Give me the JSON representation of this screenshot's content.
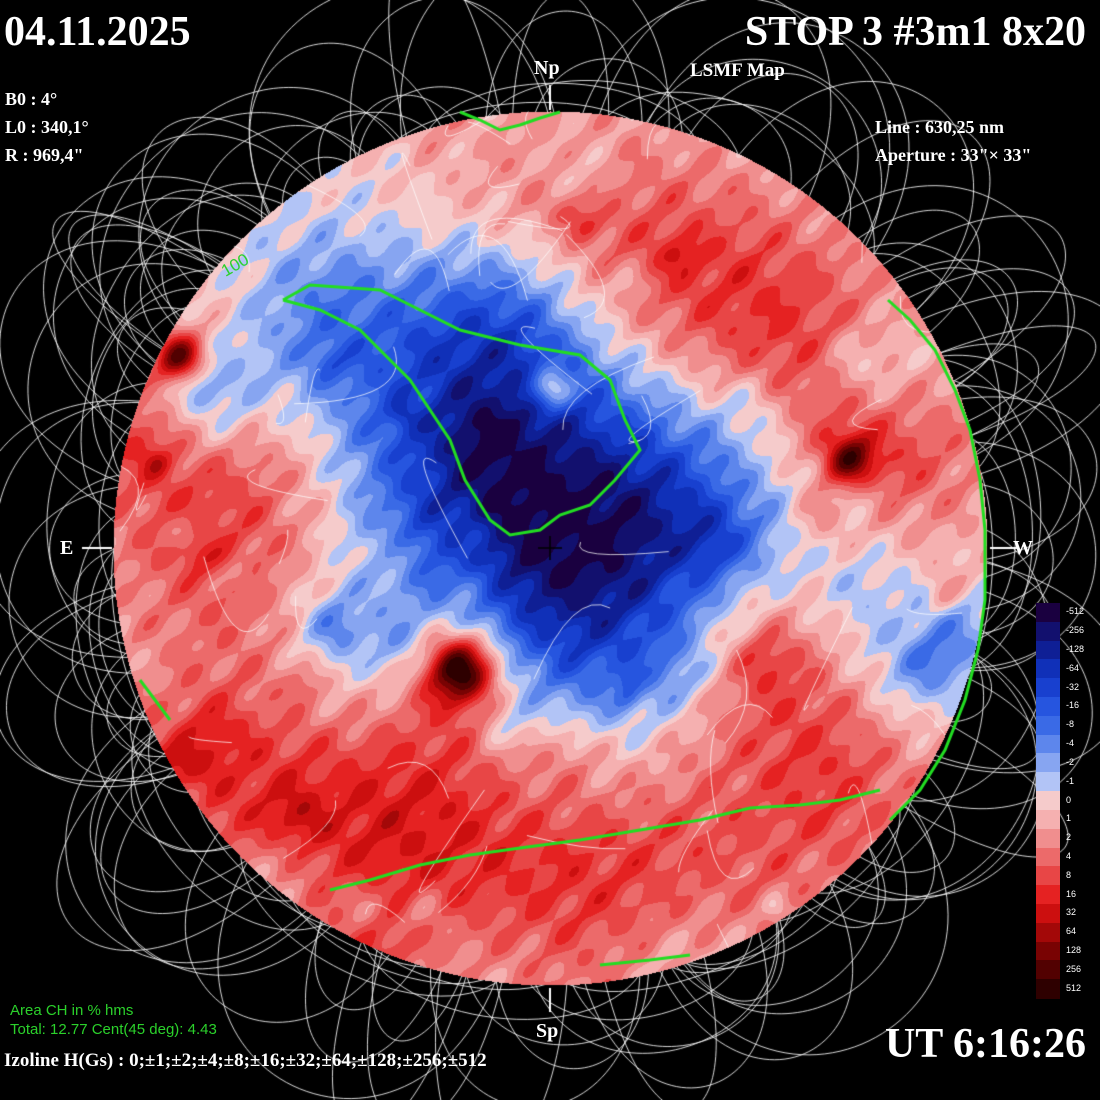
{
  "header": {
    "date": "04.11.2025",
    "title": "STOP 3 #3m1 8x20",
    "subtitle": "LSMF  Map",
    "b0": "B0 : 4°",
    "l0": "L0 : 340,1°",
    "r": "R  : 969,4\"",
    "line": "Line :  630,25 nm",
    "aperture": "Aperture : 33\"× 33\""
  },
  "orientation": {
    "north": "Np",
    "south": "Sp",
    "east": "E",
    "west": "W"
  },
  "coronal_hole": {
    "label_100": "100",
    "area_title": "Area CH in % hms",
    "area_values": "Total: 12.77    Cent(45 deg): 4.43"
  },
  "footer": {
    "isolines": "Izoline H(Gs) : 0;±1;±2;±4;±8;±16;±32;±64;±128;±256;±512",
    "time": "UT 6:16:26"
  },
  "scale": {
    "labels": [
      "-512",
      "-256",
      "-128",
      "-64",
      "-32",
      "-16",
      "-8",
      "-4",
      "-2",
      "-1",
      "0",
      "1",
      "2",
      "4",
      "8",
      "16",
      "32",
      "64",
      "128",
      "256",
      "512"
    ],
    "colors": [
      "#1a0040",
      "#12106e",
      "#0f1f95",
      "#1030b8",
      "#1840cf",
      "#2655df",
      "#3a6ae6",
      "#5d86ec",
      "#87a5f1",
      "#b2c4f6",
      "#f5cbcb",
      "#f5b0b0",
      "#f08e8e",
      "#ec6a6a",
      "#e84646",
      "#e52222",
      "#cc0f0f",
      "#a30808",
      "#790303",
      "#520101",
      "#2e0000"
    ]
  },
  "colors": {
    "red": "#e53b3b",
    "blue": "#2c4fe0",
    "ch_line": "#22dd22",
    "field_line": "#ffffff"
  }
}
